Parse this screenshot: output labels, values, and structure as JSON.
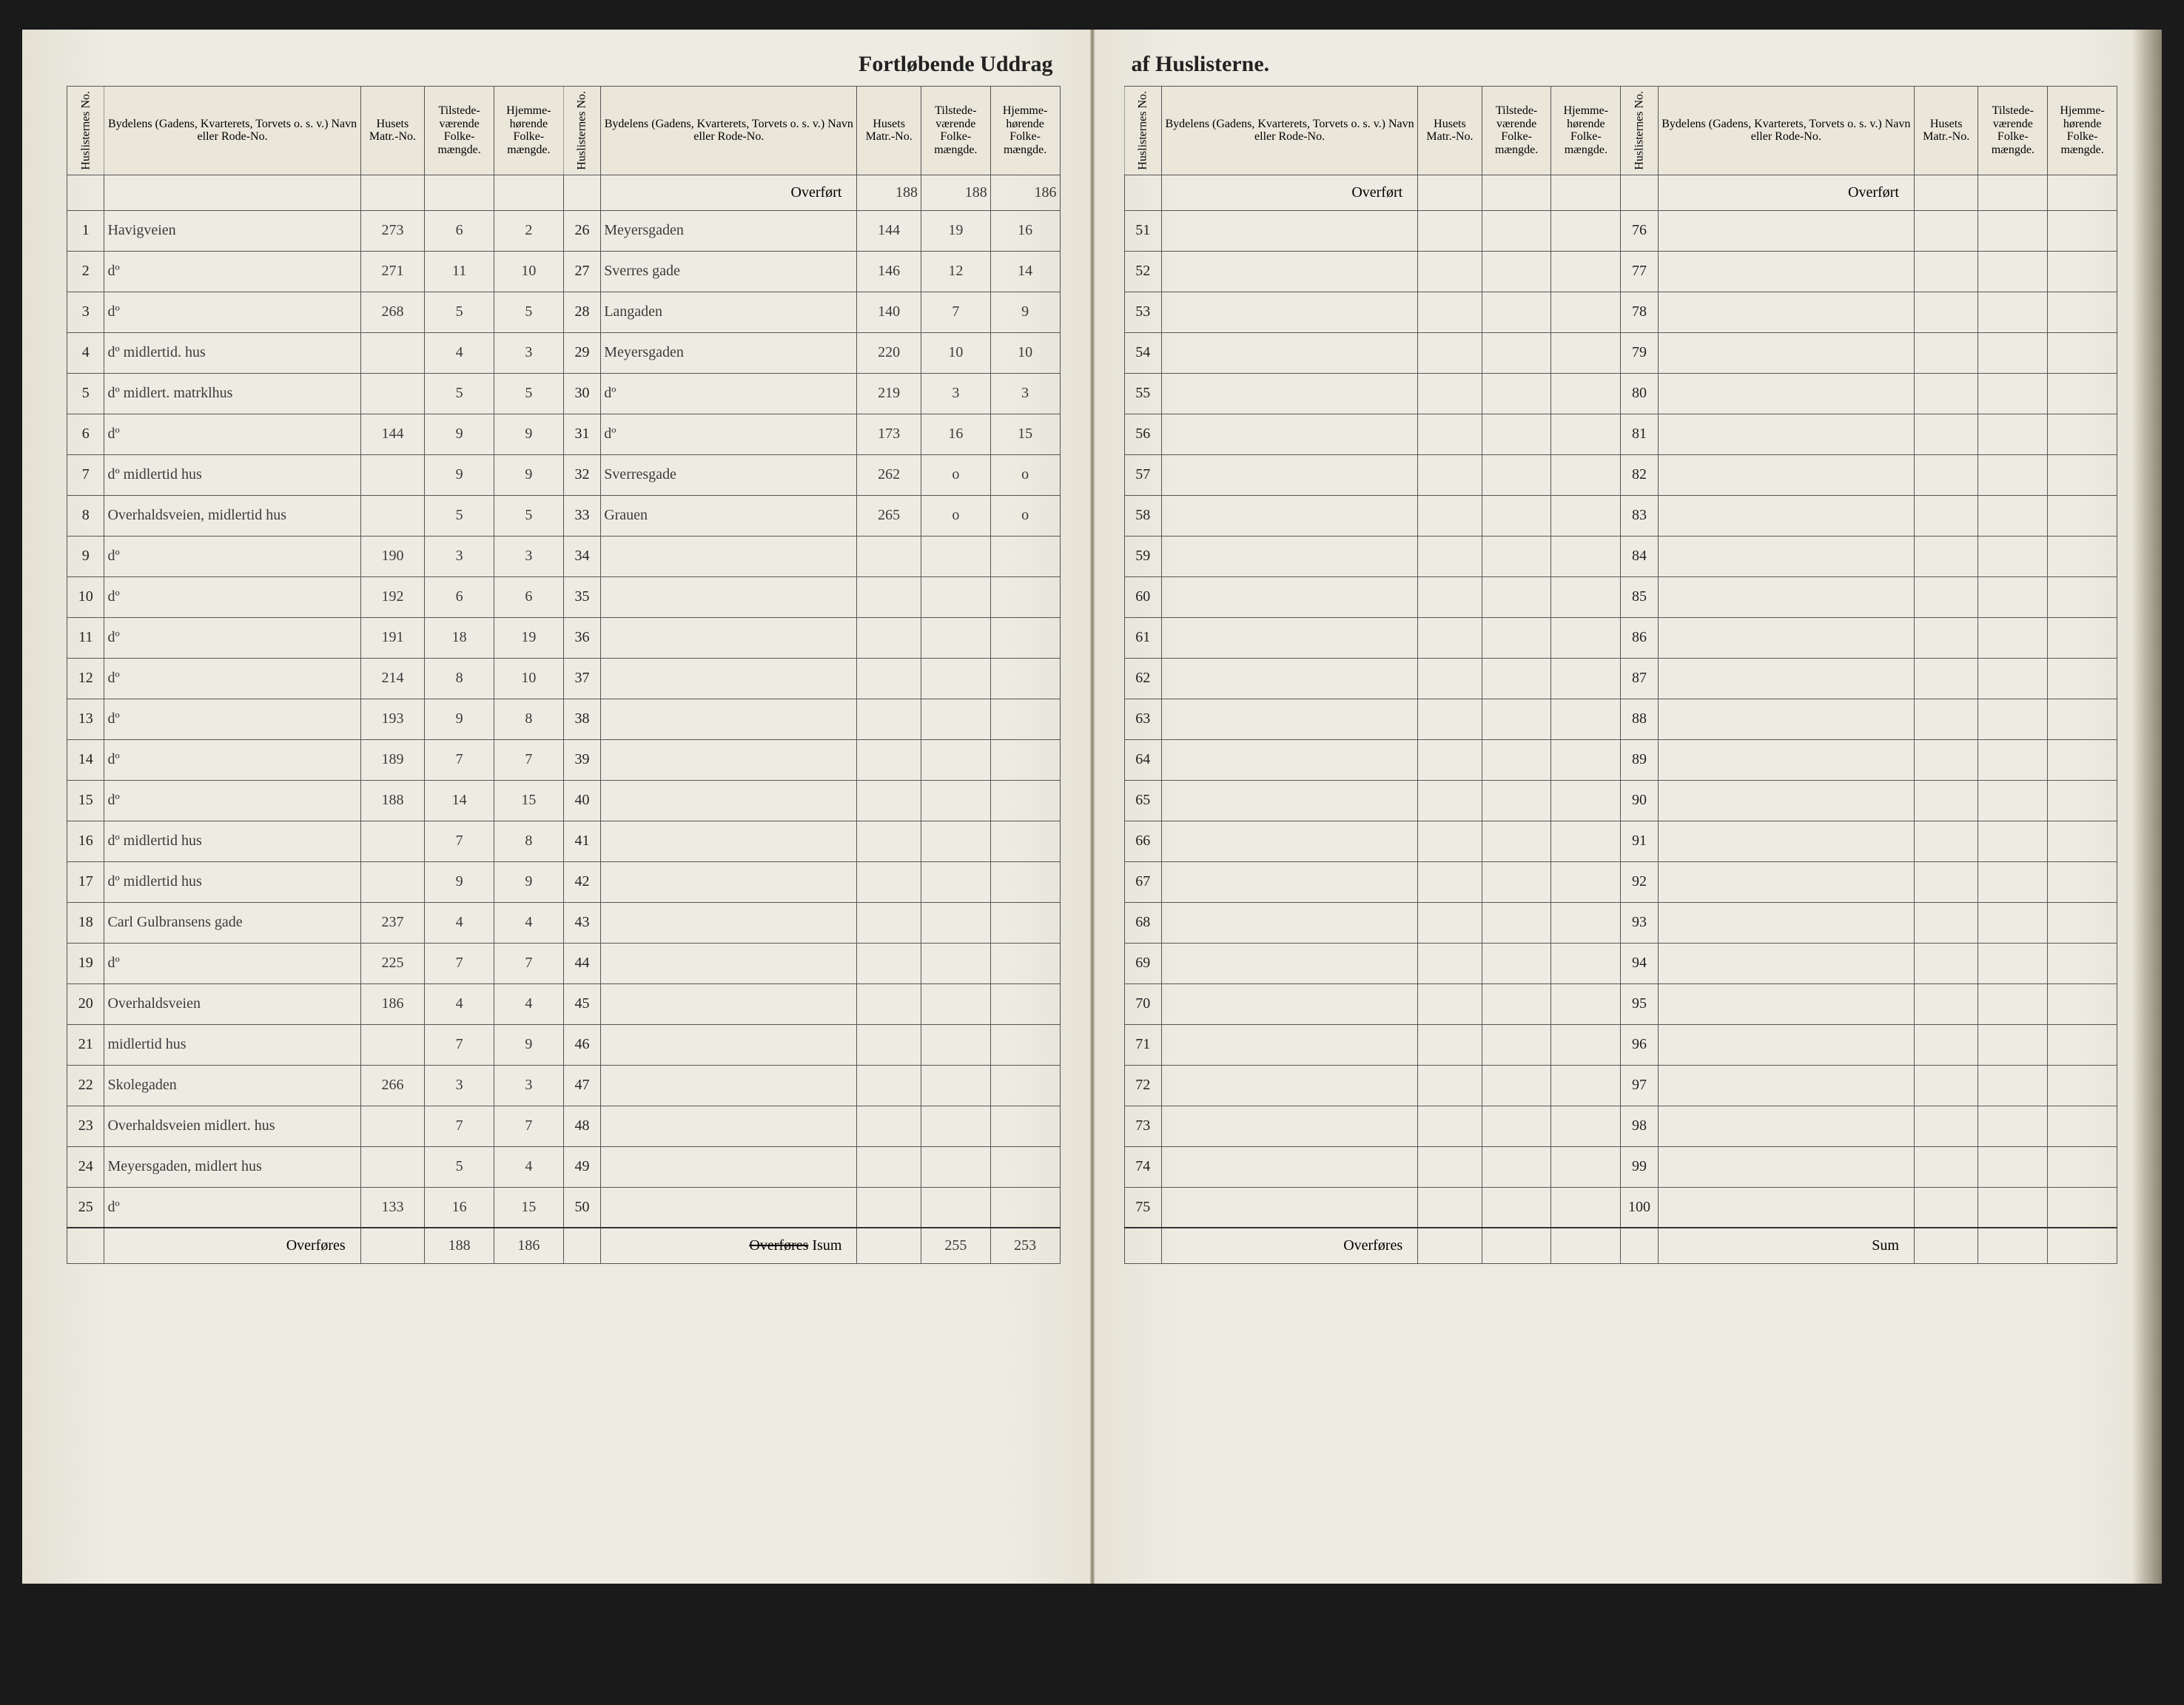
{
  "title": {
    "left": "Fortløbende Uddrag",
    "right": "af Huslisterne."
  },
  "headers": {
    "no": "Huslisternes No.",
    "name": "Bydelens (Gadens, Kvarterets, Torvets o. s. v.) Navn eller Rode-No.",
    "matr": "Husets Matr.-No.",
    "pop1": "Tilstede-værende Folke-mængde.",
    "pop2": "Hjemme-hørende Folke-mængde."
  },
  "footer": {
    "overfort": "Overført",
    "overfores": "Overføres",
    "sum": "Sum",
    "isum": "Isum"
  },
  "colA": {
    "rows": [
      {
        "no": "1",
        "name": "Havigveien",
        "matr": "273",
        "p1": "6",
        "p2": "2"
      },
      {
        "no": "2",
        "name": "dº",
        "matr": "271",
        "p1": "11",
        "p2": "10"
      },
      {
        "no": "3",
        "name": "dº",
        "matr": "268",
        "p1": "5",
        "p2": "5"
      },
      {
        "no": "4",
        "name": "dº    midlertid. hus",
        "matr": "",
        "p1": "4",
        "p2": "3"
      },
      {
        "no": "5",
        "name": "dº   midlert. matrklhus",
        "matr": "",
        "p1": "5",
        "p2": "5"
      },
      {
        "no": "6",
        "name": "dº",
        "matr": "144",
        "p1": "9",
        "p2": "9"
      },
      {
        "no": "7",
        "name": "dº   midlertid hus",
        "matr": "",
        "p1": "9",
        "p2": "9"
      },
      {
        "no": "8",
        "name": "Overhaldsveien, midlertid hus",
        "matr": "",
        "p1": "5",
        "p2": "5"
      },
      {
        "no": "9",
        "name": "dº",
        "matr": "190",
        "p1": "3",
        "p2": "3"
      },
      {
        "no": "10",
        "name": "dº",
        "matr": "192",
        "p1": "6",
        "p2": "6"
      },
      {
        "no": "11",
        "name": "dº",
        "matr": "191",
        "p1": "18",
        "p2": "19"
      },
      {
        "no": "12",
        "name": "dº",
        "matr": "214",
        "p1": "8",
        "p2": "10"
      },
      {
        "no": "13",
        "name": "dº",
        "matr": "193",
        "p1": "9",
        "p2": "8"
      },
      {
        "no": "14",
        "name": "dº",
        "matr": "189",
        "p1": "7",
        "p2": "7"
      },
      {
        "no": "15",
        "name": "dº",
        "matr": "188",
        "p1": "14",
        "p2": "15"
      },
      {
        "no": "16",
        "name": "dº  midlertid hus",
        "matr": "",
        "p1": "7",
        "p2": "8"
      },
      {
        "no": "17",
        "name": "dº  midlertid hus",
        "matr": "",
        "p1": "9",
        "p2": "9"
      },
      {
        "no": "18",
        "name": "Carl Gulbransens gade",
        "matr": "237",
        "p1": "4",
        "p2": "4"
      },
      {
        "no": "19",
        "name": "dº",
        "matr": "225",
        "p1": "7",
        "p2": "7"
      },
      {
        "no": "20",
        "name": "Overhaldsveien",
        "matr": "186",
        "p1": "4",
        "p2": "4"
      },
      {
        "no": "21",
        "name": "midlertid hus",
        "matr": "",
        "p1": "7",
        "p2": "9"
      },
      {
        "no": "22",
        "name": "Skolegaden",
        "matr": "266",
        "p1": "3",
        "p2": "3"
      },
      {
        "no": "23",
        "name": "Overhaldsveien midlert. hus",
        "matr": "",
        "p1": "7",
        "p2": "7"
      },
      {
        "no": "24",
        "name": "Meyersgaden, midlert hus",
        "matr": "",
        "p1": "5",
        "p2": "4"
      },
      {
        "no": "25",
        "name": "dº",
        "matr": "133",
        "p1": "16",
        "p2": "15"
      }
    ],
    "carry": {
      "p1": "188",
      "p2": "186"
    }
  },
  "colB": {
    "overfort": {
      "matr": "188",
      "p1": "188",
      "p2": "186"
    },
    "rows": [
      {
        "no": "26",
        "name": "Meyersgaden",
        "matr": "144",
        "p1": "19",
        "p2": "16"
      },
      {
        "no": "27",
        "name": "Sverres gade",
        "matr": "146",
        "p1": "12",
        "p2": "14"
      },
      {
        "no": "28",
        "name": "Langaden",
        "matr": "140",
        "p1": "7",
        "p2": "9"
      },
      {
        "no": "29",
        "name": "Meyersgaden",
        "matr": "220",
        "p1": "10",
        "p2": "10"
      },
      {
        "no": "30",
        "name": "dº",
        "matr": "219",
        "p1": "3",
        "p2": "3"
      },
      {
        "no": "31",
        "name": "dº",
        "matr": "173",
        "p1": "16",
        "p2": "15"
      },
      {
        "no": "32",
        "name": "Sverresgade",
        "matr": "262",
        "p1": "o",
        "p2": "o"
      },
      {
        "no": "33",
        "name": "Grauen",
        "matr": "265",
        "p1": "o",
        "p2": "o"
      },
      {
        "no": "34"
      },
      {
        "no": "35"
      },
      {
        "no": "36"
      },
      {
        "no": "37"
      },
      {
        "no": "38"
      },
      {
        "no": "39"
      },
      {
        "no": "40"
      },
      {
        "no": "41"
      },
      {
        "no": "42"
      },
      {
        "no": "43"
      },
      {
        "no": "44"
      },
      {
        "no": "45"
      },
      {
        "no": "46"
      },
      {
        "no": "47"
      },
      {
        "no": "48"
      },
      {
        "no": "49"
      },
      {
        "no": "50"
      }
    ],
    "carry": {
      "p1": "255",
      "p2": "253"
    }
  },
  "colC": {
    "startNo": 51,
    "endNo": 75
  },
  "colD": {
    "startNo": 76,
    "endNo": 100
  },
  "colors": {
    "paper": "#eeece2",
    "ink": "#3a3a3a",
    "rule": "#555555",
    "frame": "#1a1a1a"
  }
}
